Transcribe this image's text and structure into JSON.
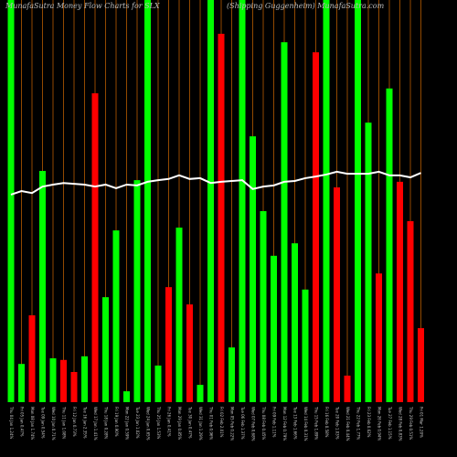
{
  "chart_data": {
    "type": "bar",
    "title": "MunafaSutra  Money Flow  Charts for SLX",
    "subtitle": "(Shipping Guggenheim) MunafaSutra.com",
    "categories": [
      "Thu 04 Jan 1.24%",
      "Fri 05 Jan 0.47%",
      "Mon 08 Jan 1.74%",
      "Tue 09 Jan 0.54%",
      "Wed 10 Jan 0.71%",
      "Thu 11 Jan 1.08%",
      "Fri 12 Jan 0.73%",
      "Tue 16 Jan 2.35%",
      "Wed 17 Jan 1.41%",
      "Thu 18 Jan 0.28%",
      "Fri 19 Jan 0.90%",
      "Mon 22 Jan 0.59%",
      "Tue 23 Jan 1.02%",
      "Wed 24 Jan 0.65%",
      "Thu 25 Jan 1.53%",
      "Fri 26 Jan 0.41%",
      "Mon 29 Jan 0.85%",
      "Tue 30 Jan 0.47%",
      "Wed 31 Jan 1.29%",
      "Thu 01 Feb 0.96%",
      "Fri 02 Feb 2.01%",
      "Mon 05 Feb 0.22%",
      "Tue 06 Feb 1.37%",
      "Wed 07 Feb 0.68%",
      "Thu 08 Feb 0.45%",
      "Fri 09 Feb 1.11%",
      "Mon 12 Feb 0.79%",
      "Tue 13 Feb 1.66%",
      "Wed 14 Feb 0.31%",
      "Thu 15 Feb 1.89%",
      "Fri 16 Feb 0.58%",
      "Tue 20 Feb 1.03%",
      "Wed 21 Feb 0.44%",
      "Thu 22 Feb 1.77%",
      "Fri 23 Feb 0.62%",
      "Mon 26 Feb 0.94%",
      "Tue 27 Feb 1.15%",
      "Wed 28 Feb 0.83%",
      "Thu 29 Feb 0.51%",
      "Fri 01 Mar 1.20%"
    ],
    "values": [
      100,
      9.5,
      21.6,
      57.5,
      10.9,
      10.5,
      7.5,
      11.4,
      76.8,
      26.1,
      42.7,
      2.7,
      55.2,
      100,
      9.1,
      28.6,
      43.4,
      24.3,
      4.3,
      100,
      91.6,
      13.6,
      100,
      66.1,
      47.5,
      36.4,
      89.5,
      39.5,
      28.0,
      87.0,
      100,
      53.4,
      6.6,
      100,
      69.5,
      32.0,
      78.0,
      54.8,
      45.0,
      18.4
    ],
    "bar_colors": [
      "#00ff00",
      "#00ff00",
      "#ff0000",
      "#00ff00",
      "#00ff00",
      "#ff0000",
      "#ff0000",
      "#00ff00",
      "#ff0000",
      "#00ff00",
      "#00ff00",
      "#00ff00",
      "#00ff00",
      "#00ff00",
      "#00ff00",
      "#ff0000",
      "#00ff00",
      "#ff0000",
      "#00ff00",
      "#00ff00",
      "#ff0000",
      "#00ff00",
      "#00ff00",
      "#00ff00",
      "#00ff00",
      "#00ff00",
      "#00ff00",
      "#00ff00",
      "#00ff00",
      "#ff0000",
      "#00ff00",
      "#ff0000",
      "#ff0000",
      "#00ff00",
      "#00ff00",
      "#ff0000",
      "#00ff00",
      "#ff0000",
      "#ff0000",
      "#ff0000"
    ],
    "line_values": [
      51.6,
      52.5,
      52.0,
      53.6,
      54.1,
      54.5,
      54.3,
      54.1,
      53.6,
      54.1,
      53.2,
      54.1,
      53.9,
      54.8,
      55.2,
      55.5,
      56.4,
      55.5,
      55.7,
      54.5,
      54.8,
      55.0,
      55.2,
      53.0,
      53.6,
      53.9,
      54.8,
      55.0,
      55.7,
      56.1,
      56.6,
      57.3,
      56.8,
      56.8,
      56.8,
      57.3,
      56.4,
      56.4,
      55.9,
      57.0
    ],
    "line_color": "#ffffff",
    "ylim": [
      0,
      100
    ]
  }
}
